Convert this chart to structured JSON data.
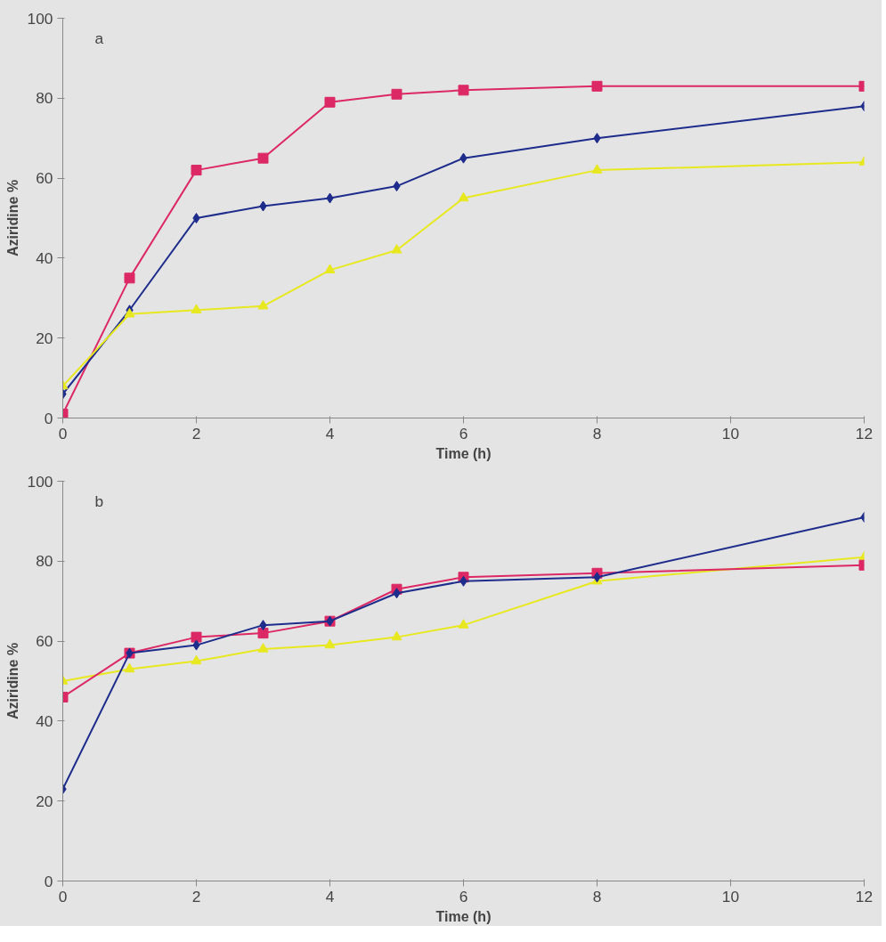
{
  "chart_data": [
    {
      "type": "line",
      "xlabel": "Time (h)",
      "ylabel": "Aziridine %",
      "annotations": [
        "a"
      ],
      "x": [
        0,
        1,
        2,
        3,
        4,
        5,
        6,
        8,
        12
      ],
      "xlim": [
        0,
        12
      ],
      "ylim": [
        0,
        100
      ],
      "xticks": [
        0,
        2,
        4,
        6,
        8,
        10,
        12
      ],
      "yticks": [
        0,
        20,
        40,
        60,
        80,
        100
      ],
      "series": [
        {
          "color": "#dc2864",
          "marker": "square",
          "values": [
            1,
            35,
            62,
            65,
            79,
            81,
            82,
            83,
            83
          ]
        },
        {
          "color": "#1e2d8c",
          "marker": "diamond",
          "values": [
            6,
            27,
            50,
            53,
            55,
            58,
            65,
            70,
            78
          ]
        },
        {
          "color": "#e8e820",
          "marker": "triangle",
          "values": [
            8,
            26,
            27,
            28,
            37,
            42,
            55,
            62,
            64
          ]
        }
      ]
    },
    {
      "type": "line",
      "xlabel": "Time (h)",
      "ylabel": "Aziridine %",
      "annotations": [
        "b"
      ],
      "x": [
        0,
        1,
        2,
        3,
        4,
        5,
        6,
        8,
        12
      ],
      "xlim": [
        0,
        12
      ],
      "ylim": [
        0,
        100
      ],
      "xticks": [
        0,
        2,
        4,
        6,
        8,
        10,
        12
      ],
      "yticks": [
        0,
        20,
        40,
        60,
        80,
        100
      ],
      "series": [
        {
          "color": "#e8e820",
          "marker": "triangle",
          "values": [
            50,
            53,
            55,
            58,
            59,
            61,
            64,
            75,
            81
          ]
        },
        {
          "color": "#dc2864",
          "marker": "square",
          "values": [
            46,
            57,
            61,
            62,
            65,
            73,
            76,
            77,
            79
          ]
        },
        {
          "color": "#1e2d8c",
          "marker": "diamond",
          "values": [
            23,
            57,
            59,
            64,
            65,
            72,
            75,
            76,
            91
          ]
        }
      ]
    }
  ]
}
